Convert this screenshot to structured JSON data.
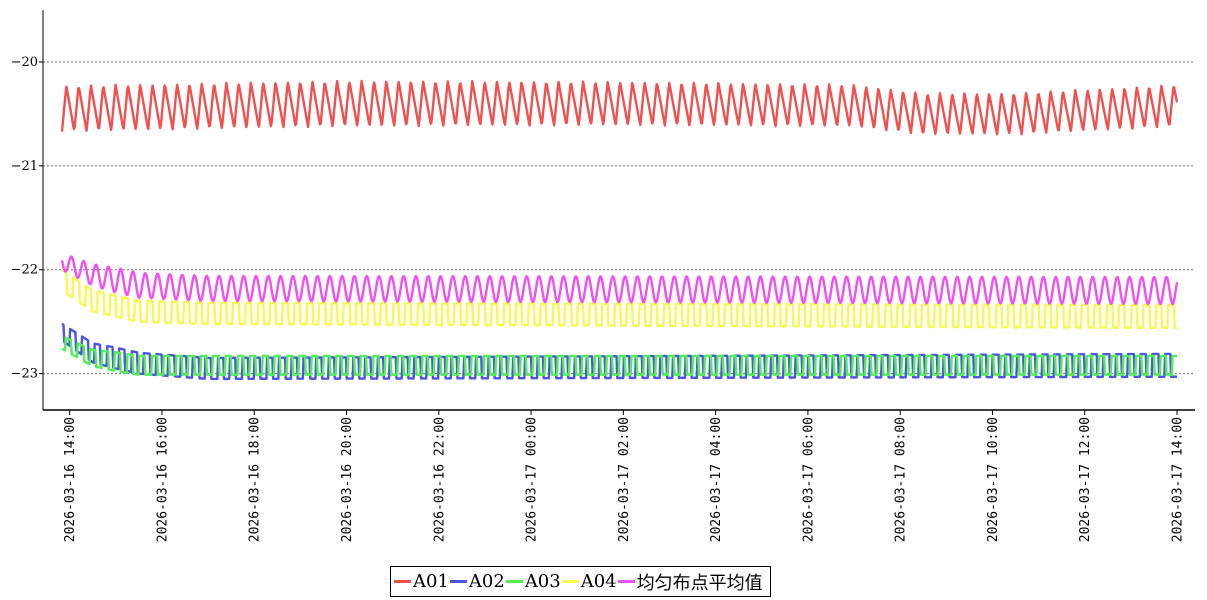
{
  "chart_data": {
    "type": "line",
    "title": "",
    "xlabel": "",
    "ylabel": "",
    "x_start": "2026-03-16 13:50",
    "x_end": "2026-03-17 14:00",
    "x_ticks": [
      "2026-03-16 14:00",
      "2026-03-16 16:00",
      "2026-03-16 18:00",
      "2026-03-16 20:00",
      "2026-03-16 22:00",
      "2026-03-17 00:00",
      "2026-03-17 02:00",
      "2026-03-17 04:00",
      "2026-03-17 06:00",
      "2026-03-17 08:00",
      "2026-03-17 10:00",
      "2026-03-17 12:00",
      "2026-03-17 14:00"
    ],
    "y_ticks": [
      -20,
      -21,
      -22,
      -23
    ],
    "ylim": [
      -23.35,
      -19.5
    ],
    "grid": "horizontal dotted",
    "legend_position": "bottom",
    "series": [
      {
        "name": "A01",
        "color": "#f05050",
        "oscillation": "sawtooth",
        "points": [
          [
            "2026-03-16 13:50",
            -20.45
          ],
          [
            "2026-03-16 20:00",
            -20.4
          ],
          [
            "2026-03-17 02:00",
            -20.4
          ],
          [
            "2026-03-17 07:00",
            -20.42
          ],
          [
            "2026-03-17 08:30",
            -20.5
          ],
          [
            "2026-03-17 10:30",
            -20.5
          ],
          [
            "2026-03-17 14:00",
            -20.42
          ]
        ],
        "amplitude": [
          [
            "2026-03-16 13:50",
            0.22
          ],
          [
            "2026-03-16 20:00",
            0.22
          ],
          [
            "2026-03-17 08:00",
            0.2
          ],
          [
            "2026-03-17 14:00",
            0.2
          ]
        ]
      },
      {
        "name": "A02",
        "color": "#4a55e0",
        "oscillation": "square",
        "points": [
          [
            "2026-03-16 13:50",
            -22.6
          ],
          [
            "2026-03-16 14:30",
            -22.8
          ],
          [
            "2026-03-16 15:30",
            -22.9
          ],
          [
            "2026-03-16 17:00",
            -22.95
          ],
          [
            "2026-03-17 14:00",
            -22.92
          ]
        ],
        "amplitude": [
          [
            "2026-03-16 13:50",
            0.08
          ],
          [
            "2026-03-16 15:00",
            0.1
          ],
          [
            "2026-03-17 14:00",
            0.11
          ]
        ]
      },
      {
        "name": "A03",
        "color": "#50f050",
        "oscillation": "square",
        "points": [
          [
            "2026-03-16 13:50",
            -22.7
          ],
          [
            "2026-03-16 14:30",
            -22.85
          ],
          [
            "2026-03-16 15:30",
            -22.92
          ],
          [
            "2026-03-17 14:00",
            -22.92
          ]
        ],
        "amplitude": [
          [
            "2026-03-16 13:50",
            0.06
          ],
          [
            "2026-03-16 15:00",
            0.09
          ],
          [
            "2026-03-17 14:00",
            0.09
          ]
        ]
      },
      {
        "name": "A04",
        "color": "#f8f850",
        "oscillation": "square",
        "points": [
          [
            "2026-03-16 13:50",
            -22.1
          ],
          [
            "2026-03-16 14:30",
            -22.3
          ],
          [
            "2026-03-16 15:30",
            -22.4
          ],
          [
            "2026-03-16 17:00",
            -22.42
          ],
          [
            "2026-03-17 14:00",
            -22.45
          ]
        ],
        "amplitude": [
          [
            "2026-03-16 13:50",
            0.1
          ],
          [
            "2026-03-16 15:00",
            0.1
          ],
          [
            "2026-03-17 14:00",
            0.11
          ]
        ]
      },
      {
        "name": "均匀布点平均值",
        "color": "#f050f0",
        "oscillation": "sine",
        "points": [
          [
            "2026-03-16 13:50",
            -21.92
          ],
          [
            "2026-03-16 14:30",
            -22.05
          ],
          [
            "2026-03-16 15:30",
            -22.15
          ],
          [
            "2026-03-16 17:00",
            -22.18
          ],
          [
            "2026-03-17 14:00",
            -22.2
          ]
        ],
        "amplitude": [
          [
            "2026-03-16 13:50",
            0.08
          ],
          [
            "2026-03-16 15:00",
            0.12
          ],
          [
            "2026-03-17 14:00",
            0.13
          ]
        ]
      }
    ]
  }
}
